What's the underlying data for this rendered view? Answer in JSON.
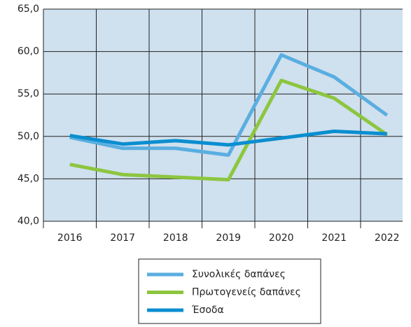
{
  "chart_data": {
    "type": "line",
    "categories": [
      "2016",
      "2017",
      "2018",
      "2019",
      "2020",
      "2021",
      "2022"
    ],
    "series": [
      {
        "name": "Συνολικές δαπάνες",
        "color": "#5aaee0",
        "values": [
          49.9,
          48.6,
          48.6,
          47.8,
          59.6,
          57.0,
          52.5
        ]
      },
      {
        "name": "Πρωτογενείς δαπάνες",
        "color": "#8cc63f",
        "values": [
          46.7,
          45.5,
          45.2,
          44.9,
          56.6,
          54.5,
          50.2
        ]
      },
      {
        "name": "Έσοδα",
        "color": "#0a8ed0",
        "values": [
          50.1,
          49.1,
          49.5,
          49.0,
          49.8,
          50.6,
          50.3
        ]
      }
    ],
    "ylim": [
      40,
      65
    ],
    "yticks": [
      {
        "value": 40,
        "label": "40,0"
      },
      {
        "value": 45,
        "label": "45,0"
      },
      {
        "value": 50,
        "label": "50,0"
      },
      {
        "value": 55,
        "label": "55,0"
      },
      {
        "value": 60,
        "label": "60,0"
      },
      {
        "value": 65,
        "label": "65,0"
      }
    ],
    "grid": true
  }
}
